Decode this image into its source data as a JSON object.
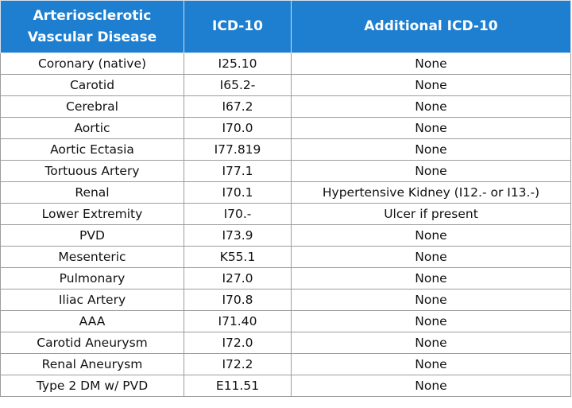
{
  "table": {
    "headers": {
      "disease_line1": "Arteriosclerotic",
      "disease_line2": "Vascular Disease",
      "icd10": "ICD-10",
      "additional": "Additional ICD-10"
    },
    "rows": [
      {
        "disease": "Coronary (native)",
        "icd10": "I25.10",
        "additional": "None"
      },
      {
        "disease": "Carotid",
        "icd10": "I65.2-",
        "additional": "None"
      },
      {
        "disease": "Cerebral",
        "icd10": "I67.2",
        "additional": "None"
      },
      {
        "disease": "Aortic",
        "icd10": "I70.0",
        "additional": "None"
      },
      {
        "disease": "Aortic Ectasia",
        "icd10": "I77.819",
        "additional": "None"
      },
      {
        "disease": "Tortuous Artery",
        "icd10": "I77.1",
        "additional": "None"
      },
      {
        "disease": "Renal",
        "icd10": "I70.1",
        "additional": "Hypertensive Kidney  (I12.- or I13.-)"
      },
      {
        "disease": "Lower Extremity",
        "icd10": "I70.-",
        "additional": "Ulcer if present"
      },
      {
        "disease": "PVD",
        "icd10": "I73.9",
        "additional": "None"
      },
      {
        "disease": "Mesenteric",
        "icd10": "K55.1",
        "additional": "None"
      },
      {
        "disease": "Pulmonary",
        "icd10": "I27.0",
        "additional": "None"
      },
      {
        "disease": "Iliac Artery",
        "icd10": "I70.8",
        "additional": "None"
      },
      {
        "disease": "AAA",
        "icd10": "I71.40",
        "additional": "None"
      },
      {
        "disease": "Carotid Aneurysm",
        "icd10": "I72.0",
        "additional": "None"
      },
      {
        "disease": "Renal Aneurysm",
        "icd10": "I72.2",
        "additional": "None"
      },
      {
        "disease": "Type 2 DM w/ PVD",
        "icd10": "E11.51",
        "additional": "None"
      }
    ]
  },
  "colors": {
    "header_background": "#1e7fd0",
    "header_text": "#ffffff",
    "border": "#9c9c9c"
  }
}
